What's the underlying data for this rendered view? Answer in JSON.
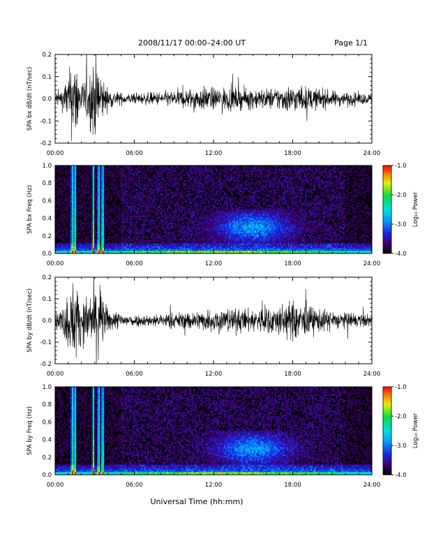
{
  "header": {
    "title": "2008/11/17  00:00–24:00 UT",
    "page": "Page 1/1"
  },
  "xlabel": "Universal Time (hh:mm)",
  "xticks": [
    "00:00",
    "06:00",
    "12:00",
    "18:00",
    "24:00"
  ],
  "colorbar": {
    "label": "Log₁₀ Power",
    "ticks": [
      "-1.0",
      "-2.0",
      "-3.0",
      "-4.0"
    ]
  },
  "chart_data": [
    {
      "type": "line",
      "ylabel": "SPA bx dB/dt (nT/sec)",
      "xlim": [
        0,
        24
      ],
      "ylim": [
        -0.2,
        0.2
      ],
      "yticks": [
        "0.2",
        "0.1",
        "0.0",
        "-0.1",
        "-0.2"
      ],
      "description_values": "noise envelope (amplitude, nT/sec) vs hour",
      "envelope": {
        "x": [
          0,
          0.5,
          1.0,
          1.3,
          1.6,
          2.0,
          2.5,
          2.9,
          3.3,
          3.6,
          4.0,
          5.0,
          6.0,
          7.0,
          8.0,
          9.0,
          10.0,
          11.0,
          12.0,
          13.0,
          14.0,
          15.0,
          16.0,
          17.0,
          18.0,
          19.0,
          20.0,
          21.0,
          22.0,
          23.0,
          24.0
        ],
        "amplitude": [
          0.03,
          0.05,
          0.12,
          0.2,
          0.2,
          0.08,
          0.12,
          0.2,
          0.2,
          0.1,
          0.05,
          0.03,
          0.025,
          0.03,
          0.035,
          0.04,
          0.05,
          0.06,
          0.055,
          0.06,
          0.05,
          0.055,
          0.05,
          0.06,
          0.07,
          0.06,
          0.05,
          0.04,
          0.035,
          0.03,
          0.025
        ]
      }
    },
    {
      "type": "heatmap",
      "ylabel": "SPA bx Freq (Hz)",
      "xlim": [
        0,
        24
      ],
      "ylim": [
        0,
        1.0
      ],
      "yticks": [
        "1.0",
        "0.8",
        "0.6",
        "0.4",
        "0.2",
        "0.0"
      ],
      "zlim": [
        -4.0,
        -1.0
      ],
      "zlabel": "Log₁₀ Power",
      "features": {
        "bursts_hours": [
          1.3,
          1.5,
          2.9,
          3.3,
          3.6
        ],
        "band_center_hours": 15.0,
        "band_freq_range": [
          0.1,
          0.5
        ]
      }
    },
    {
      "type": "line",
      "ylabel": "SPA by dB/dt (nT/sec)",
      "xlim": [
        0,
        24
      ],
      "ylim": [
        -0.2,
        0.2
      ],
      "yticks": [
        "0.2",
        "0.1",
        "0.0",
        "-0.1",
        "-0.2"
      ],
      "description_values": "noise envelope (amplitude, nT/sec) vs hour",
      "envelope": {
        "x": [
          0,
          0.5,
          1.0,
          1.3,
          1.6,
          2.0,
          2.5,
          2.9,
          3.3,
          3.6,
          4.0,
          5.0,
          6.0,
          7.0,
          8.0,
          9.0,
          10.0,
          11.0,
          12.0,
          13.0,
          14.0,
          15.0,
          16.0,
          17.0,
          18.0,
          19.0,
          20.0,
          21.0,
          22.0,
          23.0,
          24.0
        ],
        "amplitude": [
          0.04,
          0.06,
          0.15,
          0.2,
          0.2,
          0.1,
          0.12,
          0.2,
          0.2,
          0.12,
          0.06,
          0.04,
          0.03,
          0.03,
          0.035,
          0.04,
          0.045,
          0.05,
          0.06,
          0.065,
          0.06,
          0.06,
          0.07,
          0.08,
          0.1,
          0.08,
          0.06,
          0.05,
          0.04,
          0.035,
          0.03
        ]
      }
    },
    {
      "type": "heatmap",
      "ylabel": "SPA by Freq (Hz)",
      "xlim": [
        0,
        24
      ],
      "ylim": [
        0,
        1.0
      ],
      "yticks": [
        "1.0",
        "0.8",
        "0.6",
        "0.4",
        "0.2",
        "0.0"
      ],
      "zlim": [
        -4.0,
        -1.0
      ],
      "zlabel": "Log₁₀ Power",
      "features": {
        "bursts_hours": [
          1.3,
          1.5,
          2.9,
          3.3,
          3.6
        ],
        "band_center_hours": 15.0,
        "band_freq_range": [
          0.05,
          0.5
        ]
      }
    }
  ]
}
